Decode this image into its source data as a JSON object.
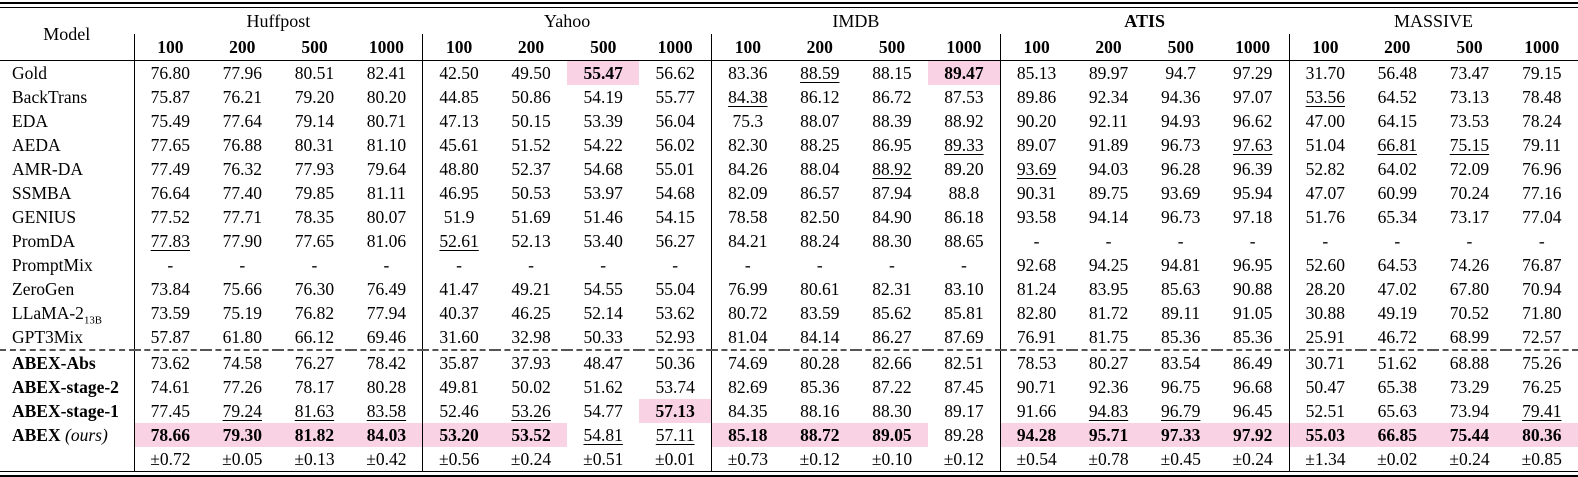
{
  "table": {
    "model_header": "Model",
    "col_labels": [
      "100",
      "200",
      "500",
      "1000"
    ],
    "groups": [
      {
        "label": "Huffpost",
        "bold": false
      },
      {
        "label": "Yahoo",
        "bold": false
      },
      {
        "label": "IMDB",
        "bold": false
      },
      {
        "label": "ATIS",
        "bold": true
      },
      {
        "label": "MASSIVE",
        "bold": false
      }
    ],
    "highlight_color": "#f9d3e3",
    "rows": [
      {
        "model": "Gold",
        "cells": [
          "76.80",
          "77.96",
          "80.51",
          "82.41",
          "42.50",
          "49.50",
          "55.47",
          "56.62",
          "83.36",
          "88.59",
          "88.15",
          "89.47",
          "85.13",
          "89.97",
          "94.7",
          "97.29",
          "31.70",
          "56.48",
          "73.47",
          "79.15"
        ],
        "u": [
          9
        ],
        "b": [
          6,
          11
        ],
        "hl": [
          6,
          11
        ]
      },
      {
        "model": "BackTrans",
        "cells": [
          "75.87",
          "76.21",
          "79.20",
          "80.20",
          "44.85",
          "50.86",
          "54.19",
          "55.77",
          "84.38",
          "86.12",
          "86.72",
          "87.53",
          "89.86",
          "92.34",
          "94.36",
          "97.07",
          "53.56",
          "64.52",
          "73.13",
          "78.48"
        ],
        "u": [
          8,
          16
        ],
        "b": [],
        "hl": []
      },
      {
        "model": "EDA",
        "cells": [
          "75.49",
          "77.64",
          "79.14",
          "80.71",
          "47.13",
          "50.15",
          "53.39",
          "56.04",
          "75.3",
          "88.07",
          "88.39",
          "88.92",
          "90.20",
          "92.11",
          "94.93",
          "96.62",
          "47.00",
          "64.15",
          "73.53",
          "78.24"
        ],
        "u": [],
        "b": [],
        "hl": []
      },
      {
        "model": "AEDA",
        "cells": [
          "77.65",
          "76.88",
          "80.31",
          "81.10",
          "45.61",
          "51.52",
          "54.22",
          "56.02",
          "82.30",
          "88.25",
          "86.95",
          "89.33",
          "89.07",
          "91.89",
          "96.73",
          "97.63",
          "51.04",
          "66.81",
          "75.15",
          "79.11"
        ],
        "u": [
          11,
          15,
          17,
          18
        ],
        "b": [],
        "hl": []
      },
      {
        "model": "AMR-DA",
        "cells": [
          "77.49",
          "76.32",
          "77.93",
          "79.64",
          "48.80",
          "52.37",
          "54.68",
          "55.01",
          "84.26",
          "88.04",
          "88.92",
          "89.20",
          "93.69",
          "94.03",
          "96.28",
          "96.39",
          "52.82",
          "64.02",
          "72.09",
          "76.96"
        ],
        "u": [
          10,
          12
        ],
        "b": [],
        "hl": []
      },
      {
        "model": "SSMBA",
        "cells": [
          "76.64",
          "77.40",
          "79.85",
          "81.11",
          "46.95",
          "50.53",
          "53.97",
          "54.68",
          "82.09",
          "86.57",
          "87.94",
          "88.8",
          "90.31",
          "89.75",
          "93.69",
          "95.94",
          "47.07",
          "60.99",
          "70.24",
          "77.16"
        ],
        "u": [],
        "b": [],
        "hl": []
      },
      {
        "model": "GENIUS",
        "cells": [
          "77.52",
          "77.71",
          "78.35",
          "80.07",
          "51.9",
          "51.69",
          "51.46",
          "54.15",
          "78.58",
          "82.50",
          "84.90",
          "86.18",
          "93.58",
          "94.14",
          "96.73",
          "97.18",
          "51.76",
          "65.34",
          "73.17",
          "77.04"
        ],
        "u": [],
        "b": [],
        "hl": []
      },
      {
        "model": "PromDA",
        "cells": [
          "77.83",
          "77.90",
          "77.65",
          "81.06",
          "52.61",
          "52.13",
          "53.40",
          "56.27",
          "84.21",
          "88.24",
          "88.30",
          "88.65",
          "-",
          "-",
          "-",
          "-",
          "-",
          "-",
          "-",
          "-"
        ],
        "u": [
          0,
          4
        ],
        "b": [],
        "hl": []
      },
      {
        "model": "PromptMix",
        "cells": [
          "-",
          "-",
          "-",
          "-",
          "-",
          "-",
          "-",
          "-",
          "-",
          "-",
          "-",
          "-",
          "92.68",
          "94.25",
          "94.81",
          "96.95",
          "52.60",
          "64.53",
          "74.26",
          "76.87"
        ],
        "u": [],
        "b": [],
        "hl": []
      },
      {
        "model": "ZeroGen",
        "cells": [
          "73.84",
          "75.66",
          "76.30",
          "76.49",
          "41.47",
          "49.21",
          "54.55",
          "55.04",
          "76.99",
          "80.61",
          "82.31",
          "83.10",
          "81.24",
          "83.95",
          "85.63",
          "90.88",
          "28.20",
          "47.02",
          "67.80",
          "70.94"
        ],
        "u": [],
        "b": [],
        "hl": []
      },
      {
        "model": "LLaMA-2",
        "model_sub": "13B",
        "cells": [
          "73.59",
          "75.19",
          "76.82",
          "77.94",
          "40.37",
          "46.25",
          "52.14",
          "53.62",
          "80.72",
          "83.59",
          "85.62",
          "85.81",
          "82.80",
          "81.72",
          "89.11",
          "91.05",
          "30.88",
          "49.19",
          "70.52",
          "71.80"
        ],
        "u": [],
        "b": [],
        "hl": []
      },
      {
        "model": "GPT3Mix",
        "cells": [
          "57.87",
          "61.80",
          "66.12",
          "69.46",
          "31.60",
          "32.98",
          "50.33",
          "52.93",
          "81.04",
          "84.14",
          "86.27",
          "87.69",
          "76.91",
          "81.75",
          "85.36",
          "85.36",
          "25.91",
          "46.72",
          "68.99",
          "72.57"
        ],
        "u": [],
        "b": [],
        "hl": []
      },
      {
        "model": "ABEX-Abs",
        "model_bold": true,
        "sep_before": true,
        "cells": [
          "73.62",
          "74.58",
          "76.27",
          "78.42",
          "35.87",
          "37.93",
          "48.47",
          "50.36",
          "74.69",
          "80.28",
          "82.66",
          "82.51",
          "78.53",
          "80.27",
          "83.54",
          "86.49",
          "30.71",
          "51.62",
          "68.88",
          "75.26"
        ],
        "u": [],
        "b": [],
        "hl": []
      },
      {
        "model": "ABEX-stage-2",
        "model_bold": true,
        "cells": [
          "74.61",
          "77.26",
          "78.17",
          "80.28",
          "49.81",
          "50.02",
          "51.62",
          "53.74",
          "82.69",
          "85.36",
          "87.22",
          "87.45",
          "90.71",
          "92.36",
          "96.75",
          "96.68",
          "50.47",
          "65.38",
          "73.29",
          "76.25"
        ],
        "u": [],
        "b": [],
        "hl": []
      },
      {
        "model": "ABEX-stage-1",
        "model_bold": true,
        "cells": [
          "77.45",
          "79.24",
          "81.63",
          "83.58",
          "52.46",
          "53.26",
          "54.77",
          "57.13",
          "84.35",
          "88.16",
          "88.30",
          "89.17",
          "91.66",
          "94.83",
          "96.79",
          "96.45",
          "52.51",
          "65.63",
          "73.94",
          "79.41"
        ],
        "u": [
          1,
          2,
          3,
          5,
          13,
          14,
          19
        ],
        "b": [
          7
        ],
        "hl": [
          7
        ]
      },
      {
        "model": "ABEX",
        "model_bold": true,
        "model_italic_suffix": "(ours)",
        "cells": [
          "78.66",
          "79.30",
          "81.82",
          "84.03",
          "53.20",
          "53.52",
          "54.81",
          "57.11",
          "85.18",
          "88.72",
          "89.05",
          "89.28",
          "94.28",
          "95.71",
          "97.33",
          "97.92",
          "55.03",
          "66.85",
          "75.44",
          "80.36"
        ],
        "u": [
          6,
          7
        ],
        "b": [
          0,
          1,
          2,
          3,
          4,
          5,
          8,
          9,
          10,
          12,
          13,
          14,
          15,
          16,
          17,
          18,
          19
        ],
        "hl": [
          0,
          1,
          2,
          3,
          4,
          5,
          8,
          9,
          10,
          12,
          13,
          14,
          15,
          16,
          17,
          18,
          19
        ]
      }
    ],
    "std_row": [
      "±0.72",
      "±0.05",
      "±0.13",
      "±0.42",
      "±0.56",
      "±0.24",
      "±0.51",
      "±0.01",
      "±0.73",
      "±0.12",
      "±0.10",
      "±0.12",
      "±0.54",
      "±0.78",
      "±0.45",
      "±0.24",
      "±1.34",
      "±0.02",
      "±0.24",
      "±0.85"
    ]
  }
}
